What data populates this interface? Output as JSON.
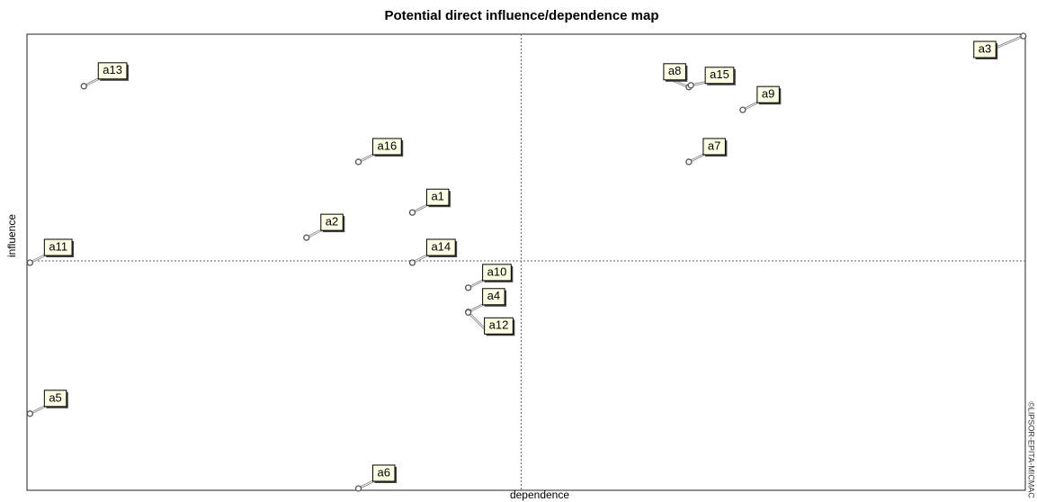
{
  "chart_data": {
    "type": "scatter",
    "title": "Potential direct influence/dependence map",
    "x_label": "dependence",
    "y_label": "influence",
    "side_note": "©LIPSOR-EPITA-MICMAC",
    "xlim": [
      0,
      100
    ],
    "ylim": [
      0,
      100
    ],
    "reference_lines": {
      "x": 49.5,
      "y": 50.3
    },
    "color": "#555555",
    "points": [
      {
        "label": "a3",
        "x": 99.8,
        "y": 99.6
      },
      {
        "label": "a13",
        "x": 5.7,
        "y": 88.6
      },
      {
        "label": "a8",
        "x": 66.3,
        "y": 88.4
      },
      {
        "label": "a15",
        "x": 66.5,
        "y": 88.8
      },
      {
        "label": "a9",
        "x": 71.7,
        "y": 83.4
      },
      {
        "label": "a7",
        "x": 66.3,
        "y": 72.0
      },
      {
        "label": "a16",
        "x": 33.2,
        "y": 72.0
      },
      {
        "label": "a1",
        "x": 38.6,
        "y": 60.9
      },
      {
        "label": "a2",
        "x": 28.0,
        "y": 55.4
      },
      {
        "label": "a11",
        "x": 0.3,
        "y": 49.9
      },
      {
        "label": "a14",
        "x": 38.6,
        "y": 49.9
      },
      {
        "label": "a10",
        "x": 44.2,
        "y": 44.4
      },
      {
        "label": "a4",
        "x": 44.2,
        "y": 39.1
      },
      {
        "label": "a12",
        "x": 44.2,
        "y": 39.0
      },
      {
        "label": "a5",
        "x": 0.3,
        "y": 16.8
      },
      {
        "label": "a6",
        "x": 33.2,
        "y": 0.4
      }
    ]
  }
}
